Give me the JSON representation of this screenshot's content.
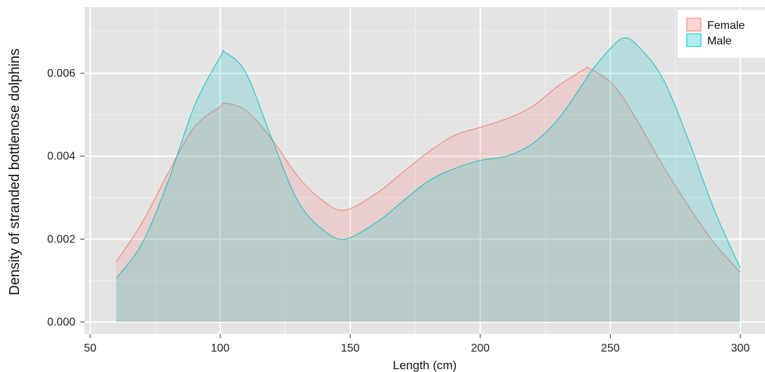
{
  "chart_data": {
    "type": "area",
    "xlabel": "Length (cm)",
    "ylabel": "Density of stranded bottlenose dolphins",
    "xlim": [
      50,
      300
    ],
    "ylim": [
      0,
      0.0076
    ],
    "x_ticks": [
      50,
      100,
      150,
      200,
      250,
      300
    ],
    "x_tick_labels": [
      "50",
      "100",
      "150",
      "200",
      "250",
      "300"
    ],
    "y_ticks": [
      0,
      0.002,
      0.004,
      0.006
    ],
    "y_tick_labels": [
      "0.000",
      "0.002",
      "0.004",
      "0.006"
    ],
    "grid": true,
    "legend": "top-right",
    "x": [
      60,
      70,
      80,
      90,
      100,
      102,
      110,
      120,
      130,
      140,
      148,
      160,
      170,
      180,
      190,
      200,
      210,
      220,
      230,
      240,
      242,
      250,
      255,
      260,
      270,
      280,
      290,
      300
    ],
    "series": [
      {
        "name": "Female",
        "color": "#f8766d",
        "values": [
          0.00145,
          0.0024,
          0.0036,
          0.0047,
          0.0052,
          0.00528,
          0.0051,
          0.0044,
          0.0035,
          0.0029,
          0.0027,
          0.0031,
          0.0036,
          0.0041,
          0.0045,
          0.0047,
          0.0049,
          0.0052,
          0.0057,
          0.0061,
          0.00612,
          0.0058,
          0.0054,
          0.0049,
          0.0038,
          0.0028,
          0.0019,
          0.0012
        ]
      },
      {
        "name": "Male",
        "color": "#00bfc4",
        "values": [
          0.00105,
          0.0019,
          0.0034,
          0.0052,
          0.0064,
          0.0065,
          0.006,
          0.0044,
          0.0029,
          0.0022,
          0.002,
          0.0024,
          0.0029,
          0.0034,
          0.0037,
          0.0039,
          0.004,
          0.0043,
          0.0049,
          0.0058,
          0.006,
          0.0066,
          0.00685,
          0.0067,
          0.0059,
          0.0044,
          0.0027,
          0.0013
        ]
      }
    ]
  }
}
